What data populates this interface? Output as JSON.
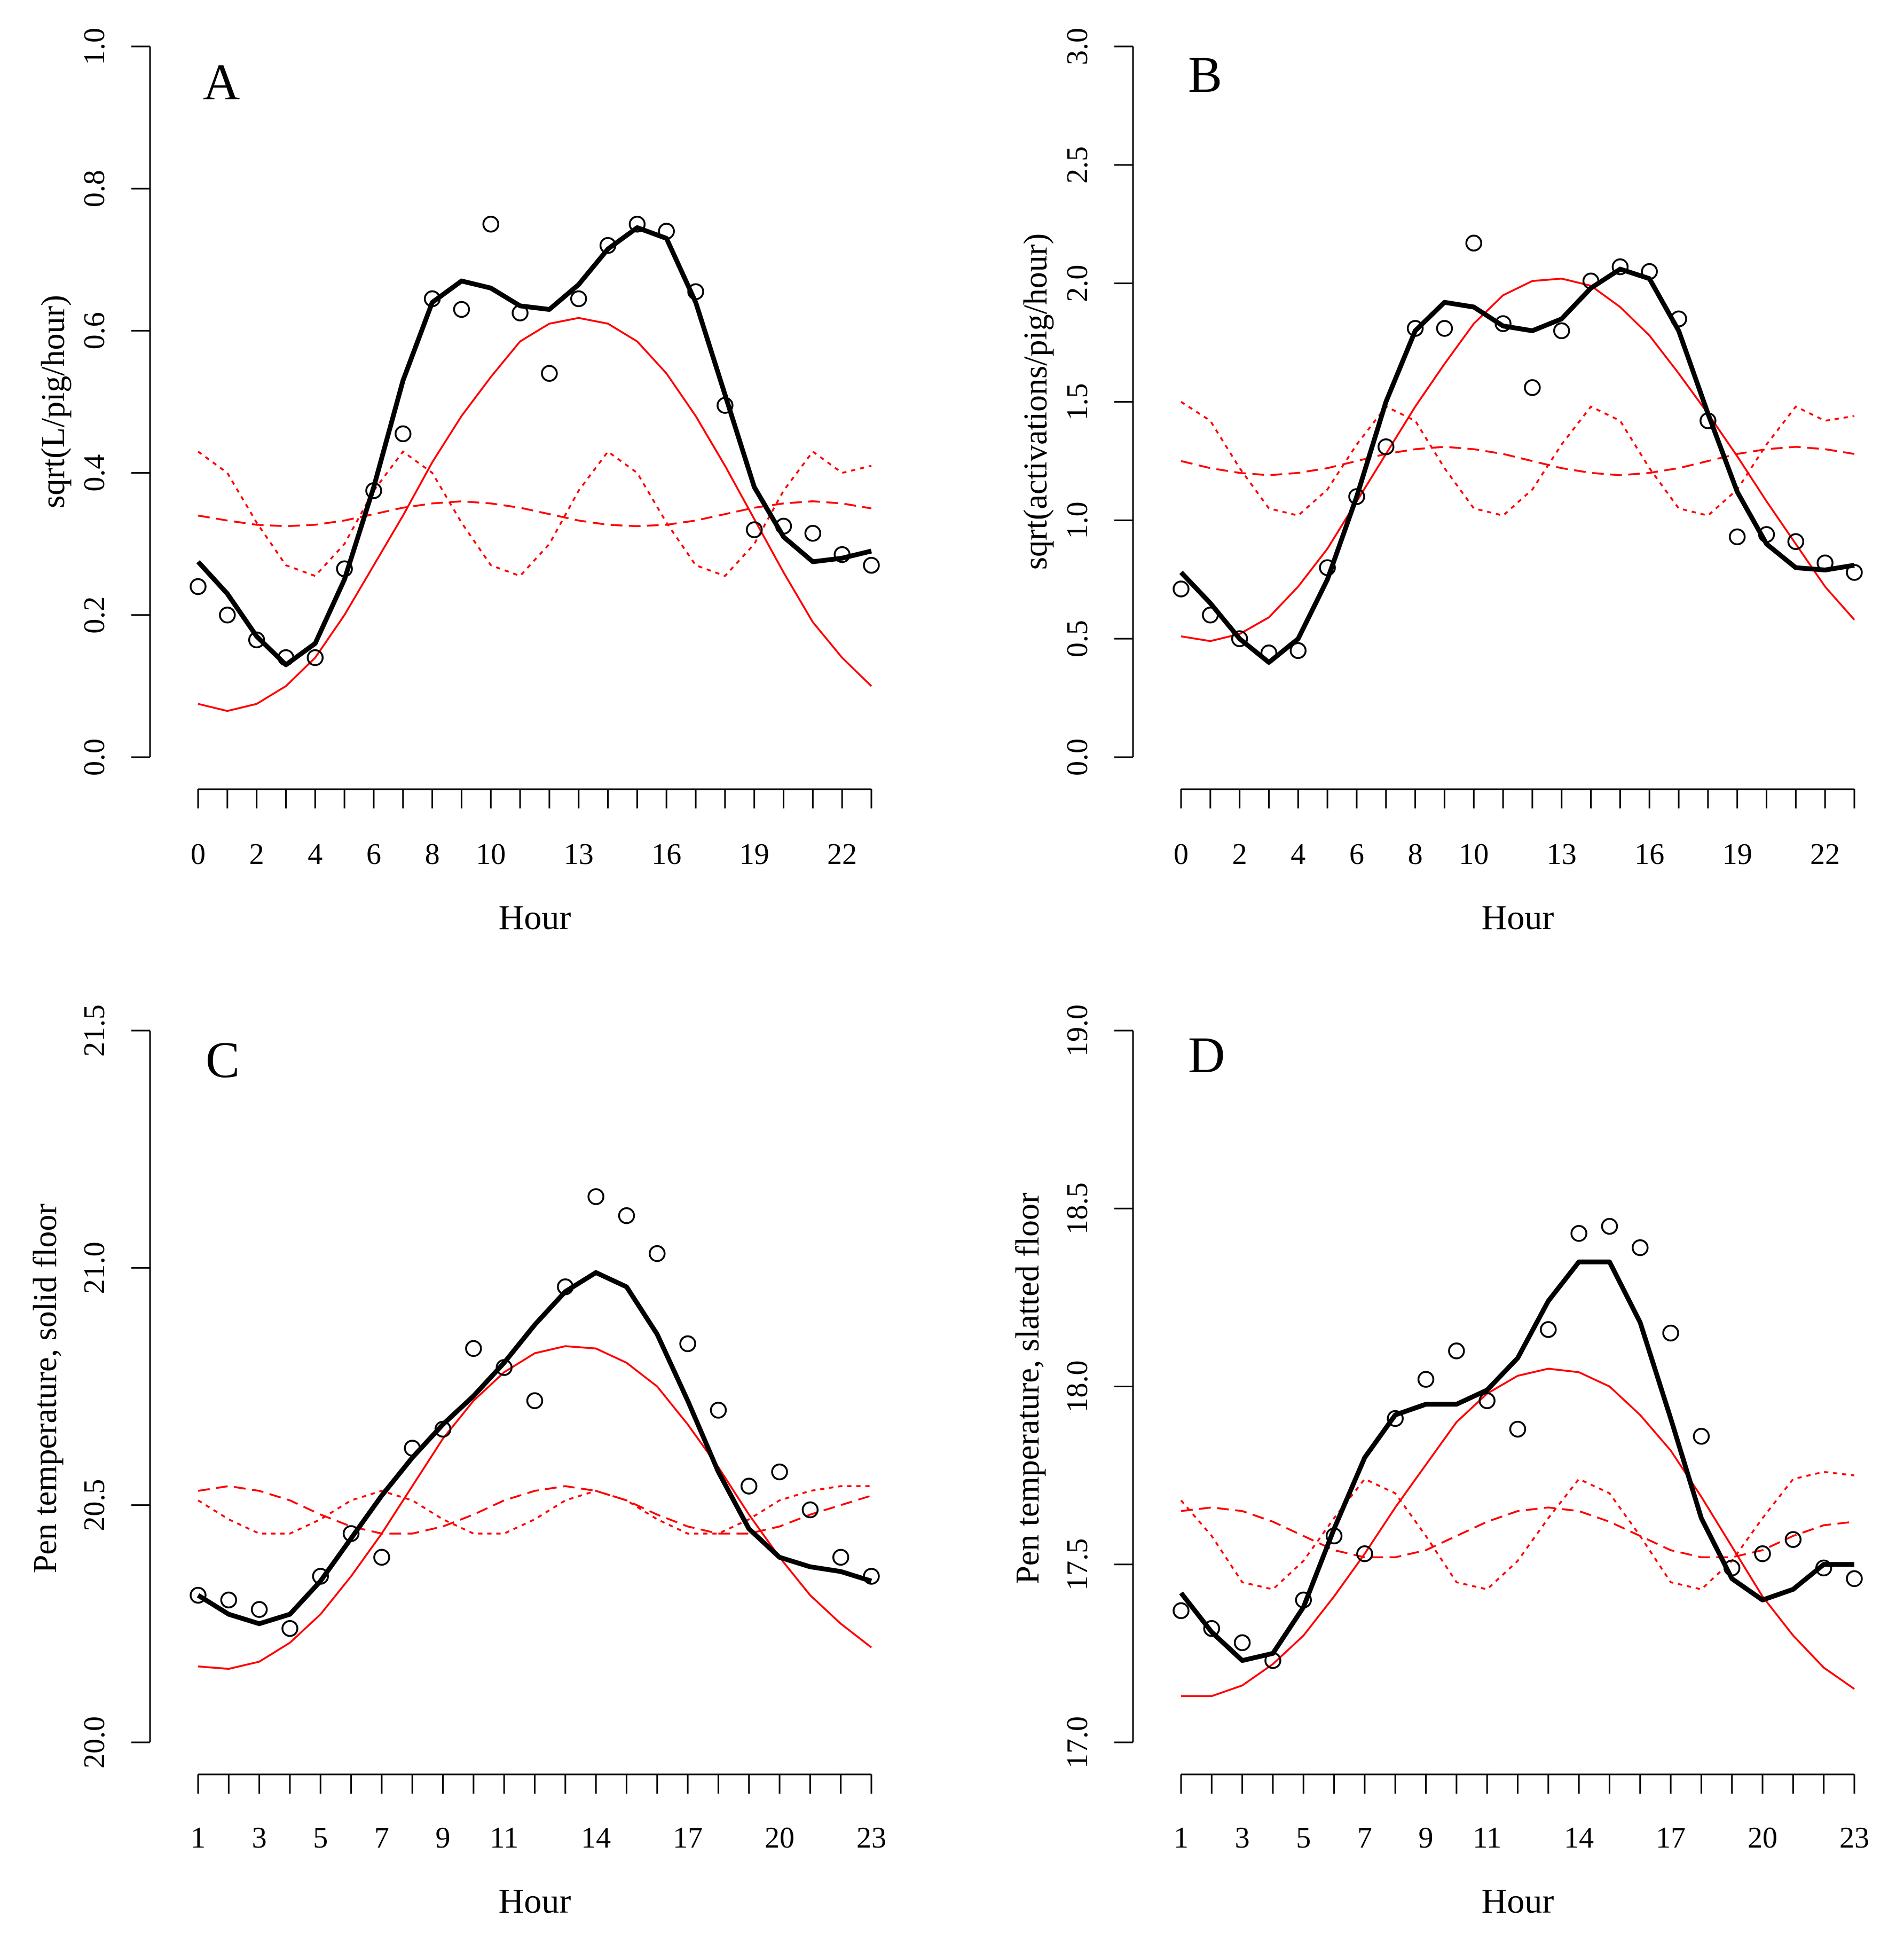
{
  "chart_data": [
    {
      "type": "line",
      "panel_label": "A",
      "xlabel": "Hour",
      "ylabel": "sqrt(L/pig/hour)",
      "xlim": [
        0,
        23
      ],
      "ylim": [
        0,
        1
      ],
      "x_ticks": [
        0,
        1,
        2,
        3,
        4,
        5,
        6,
        7,
        8,
        9,
        10,
        11,
        12,
        13,
        14,
        15,
        16,
        17,
        18,
        19,
        20,
        21,
        22,
        23
      ],
      "x_tick_labels": [
        "0",
        "2",
        "4",
        "6",
        "8",
        "10",
        "13",
        "16",
        "19",
        "22"
      ],
      "x_tick_label_at": [
        0,
        2,
        4,
        6,
        8,
        10,
        13,
        16,
        19,
        22
      ],
      "y_ticks": [
        0,
        0.2,
        0.4,
        0.6,
        0.8,
        1
      ],
      "y_tick_labels": [
        "0.0",
        "0.2",
        "0.4",
        "0.6",
        "0.8",
        "1.0"
      ],
      "x": [
        0,
        1,
        2,
        3,
        4,
        5,
        6,
        7,
        8,
        9,
        10,
        11,
        12,
        13,
        14,
        15,
        16,
        17,
        18,
        19,
        20,
        21,
        22,
        23
      ],
      "observed": [
        0.24,
        0.2,
        0.165,
        0.14,
        0.14,
        0.265,
        0.375,
        0.455,
        0.645,
        0.63,
        0.75,
        0.625,
        0.54,
        0.645,
        0.72,
        0.75,
        0.74,
        0.655,
        0.495,
        0.32,
        0.325,
        0.315,
        0.285,
        0.27
      ],
      "smooth": [
        0.275,
        0.23,
        0.17,
        0.13,
        0.16,
        0.25,
        0.38,
        0.53,
        0.64,
        0.67,
        0.66,
        0.635,
        0.63,
        0.665,
        0.715,
        0.745,
        0.73,
        0.64,
        0.51,
        0.38,
        0.31,
        0.275,
        0.28,
        0.29
      ],
      "harmonic_fit": [
        0.075,
        0.065,
        0.075,
        0.1,
        0.14,
        0.2,
        0.27,
        0.34,
        0.415,
        0.48,
        0.535,
        0.585,
        0.61,
        0.618,
        0.61,
        0.585,
        0.54,
        0.48,
        0.41,
        0.335,
        0.26,
        0.19,
        0.14,
        0.1
      ],
      "harmonic_1": [
        0.34,
        0.333,
        0.327,
        0.325,
        0.327,
        0.333,
        0.342,
        0.351,
        0.357,
        0.36,
        0.357,
        0.351,
        0.342,
        0.333,
        0.327,
        0.325,
        0.327,
        0.333,
        0.342,
        0.351,
        0.357,
        0.36,
        0.357,
        0.35
      ],
      "harmonic_2": [
        0.43,
        0.4,
        0.33,
        0.27,
        0.255,
        0.3,
        0.375,
        0.43,
        0.4,
        0.33,
        0.27,
        0.255,
        0.3,
        0.375,
        0.43,
        0.4,
        0.33,
        0.27,
        0.255,
        0.3,
        0.375,
        0.43,
        0.4,
        0.41
      ],
      "colors": {
        "observed": "#000000",
        "smooth": "#000000",
        "harmonic": "#ff0000"
      }
    },
    {
      "type": "line",
      "panel_label": "B",
      "xlabel": "Hour",
      "ylabel": "sqrt(activations/pig/hour)",
      "xlim": [
        0,
        23
      ],
      "ylim": [
        0,
        3
      ],
      "x_ticks": [
        0,
        1,
        2,
        3,
        4,
        5,
        6,
        7,
        8,
        9,
        10,
        11,
        12,
        13,
        14,
        15,
        16,
        17,
        18,
        19,
        20,
        21,
        22,
        23
      ],
      "x_tick_labels": [
        "0",
        "2",
        "4",
        "6",
        "8",
        "10",
        "13",
        "16",
        "19",
        "22"
      ],
      "x_tick_label_at": [
        0,
        2,
        4,
        6,
        8,
        10,
        13,
        16,
        19,
        22
      ],
      "y_ticks": [
        0,
        0.5,
        1,
        1.5,
        2,
        2.5,
        3
      ],
      "y_tick_labels": [
        "0.0",
        "0.5",
        "1.0",
        "1.5",
        "2.0",
        "2.5",
        "3.0"
      ],
      "x": [
        0,
        1,
        2,
        3,
        4,
        5,
        6,
        7,
        8,
        9,
        10,
        11,
        12,
        13,
        14,
        15,
        16,
        17,
        18,
        19,
        20,
        21,
        22,
        23
      ],
      "observed": [
        0.71,
        0.6,
        0.5,
        0.44,
        0.45,
        0.8,
        1.1,
        1.31,
        1.81,
        1.81,
        2.17,
        1.83,
        1.56,
        1.8,
        2.01,
        2.07,
        2.05,
        1.85,
        1.42,
        0.93,
        0.94,
        0.91,
        0.82,
        0.78
      ],
      "smooth": [
        0.78,
        0.65,
        0.5,
        0.4,
        0.5,
        0.75,
        1.1,
        1.5,
        1.8,
        1.92,
        1.9,
        1.82,
        1.8,
        1.85,
        1.98,
        2.06,
        2.02,
        1.8,
        1.45,
        1.12,
        0.9,
        0.8,
        0.79,
        0.81
      ],
      "harmonic_fit": [
        0.51,
        0.49,
        0.52,
        0.59,
        0.72,
        0.88,
        1.08,
        1.28,
        1.48,
        1.66,
        1.83,
        1.95,
        2.01,
        2.02,
        1.99,
        1.9,
        1.78,
        1.62,
        1.45,
        1.27,
        1.08,
        0.9,
        0.72,
        0.58
      ],
      "harmonic_1": [
        1.25,
        1.22,
        1.2,
        1.19,
        1.2,
        1.22,
        1.25,
        1.28,
        1.3,
        1.31,
        1.3,
        1.28,
        1.25,
        1.22,
        1.2,
        1.19,
        1.2,
        1.22,
        1.25,
        1.28,
        1.3,
        1.31,
        1.3,
        1.28
      ],
      "harmonic_2": [
        1.5,
        1.42,
        1.22,
        1.05,
        1.02,
        1.13,
        1.32,
        1.48,
        1.42,
        1.22,
        1.05,
        1.02,
        1.13,
        1.32,
        1.48,
        1.42,
        1.22,
        1.05,
        1.02,
        1.13,
        1.32,
        1.48,
        1.42,
        1.44
      ],
      "colors": {
        "observed": "#000000",
        "smooth": "#000000",
        "harmonic": "#ff0000"
      }
    },
    {
      "type": "line",
      "panel_label": "C",
      "xlabel": "Hour",
      "ylabel": "Pen temperature, solid floor",
      "xlim": [
        1,
        23
      ],
      "ylim": [
        20,
        21.5
      ],
      "x_ticks": [
        1,
        2,
        3,
        4,
        5,
        6,
        7,
        8,
        9,
        10,
        11,
        12,
        13,
        14,
        15,
        16,
        17,
        18,
        19,
        20,
        21,
        22,
        23
      ],
      "x_tick_labels": [
        "1",
        "3",
        "5",
        "7",
        "9",
        "11",
        "14",
        "17",
        "20",
        "23"
      ],
      "x_tick_label_at": [
        1,
        3,
        5,
        7,
        9,
        11,
        14,
        17,
        20,
        23
      ],
      "y_ticks": [
        20,
        20.5,
        21,
        21.5
      ],
      "y_tick_labels": [
        "20.0",
        "20.5",
        "21.0",
        "21.5"
      ],
      "x": [
        1,
        2,
        3,
        4,
        5,
        6,
        7,
        8,
        9,
        10,
        11,
        12,
        13,
        14,
        15,
        16,
        17,
        18,
        19,
        20,
        21,
        22,
        23
      ],
      "observed": [
        20.31,
        20.3,
        20.28,
        20.24,
        20.35,
        20.44,
        20.39,
        20.62,
        20.66,
        20.83,
        20.79,
        20.72,
        20.96,
        21.15,
        21.11,
        21.03,
        20.84,
        20.7,
        20.54,
        20.57,
        20.49,
        20.39,
        20.35
      ],
      "smooth": [
        20.31,
        20.27,
        20.25,
        20.27,
        20.34,
        20.43,
        20.52,
        20.6,
        20.67,
        20.73,
        20.8,
        20.88,
        20.95,
        20.99,
        20.96,
        20.86,
        20.72,
        20.57,
        20.45,
        20.39,
        20.37,
        20.36,
        20.34
      ],
      "harmonic_fit": [
        20.16,
        20.155,
        20.17,
        20.21,
        20.27,
        20.35,
        20.44,
        20.54,
        20.64,
        20.72,
        20.78,
        20.82,
        20.835,
        20.83,
        20.8,
        20.75,
        20.67,
        20.58,
        20.48,
        20.39,
        20.31,
        20.25,
        20.2
      ],
      "harmonic_1": [
        20.53,
        20.54,
        20.53,
        20.51,
        20.48,
        20.455,
        20.44,
        20.44,
        20.455,
        20.48,
        20.51,
        20.53,
        20.54,
        20.53,
        20.51,
        20.48,
        20.455,
        20.44,
        20.44,
        20.455,
        20.48,
        20.5,
        20.52
      ],
      "harmonic_2": [
        20.51,
        20.47,
        20.44,
        20.44,
        20.47,
        20.51,
        20.53,
        20.51,
        20.47,
        20.44,
        20.44,
        20.47,
        20.51,
        20.53,
        20.51,
        20.47,
        20.44,
        20.44,
        20.47,
        20.51,
        20.53,
        20.54,
        20.54
      ],
      "colors": {
        "observed": "#000000",
        "smooth": "#000000",
        "harmonic": "#ff0000"
      }
    },
    {
      "type": "line",
      "panel_label": "D",
      "xlabel": "Hour",
      "ylabel": "Pen temperature, slatted floor",
      "xlim": [
        1,
        23
      ],
      "ylim": [
        17,
        19
      ],
      "x_ticks": [
        1,
        2,
        3,
        4,
        5,
        6,
        7,
        8,
        9,
        10,
        11,
        12,
        13,
        14,
        15,
        16,
        17,
        18,
        19,
        20,
        21,
        22,
        23
      ],
      "x_tick_labels": [
        "1",
        "3",
        "5",
        "7",
        "9",
        "11",
        "14",
        "17",
        "20",
        "23"
      ],
      "x_tick_label_at": [
        1,
        3,
        5,
        7,
        9,
        11,
        14,
        17,
        20,
        23
      ],
      "y_ticks": [
        17,
        17.5,
        18,
        18.5,
        19
      ],
      "y_tick_labels": [
        "17.0",
        "17.5",
        "18.0",
        "18.5",
        "19.0"
      ],
      "x": [
        1,
        2,
        3,
        4,
        5,
        6,
        7,
        8,
        9,
        10,
        11,
        12,
        13,
        14,
        15,
        16,
        17,
        18,
        19,
        20,
        21,
        22,
        23
      ],
      "observed": [
        17.37,
        17.32,
        17.28,
        17.23,
        17.4,
        17.58,
        17.53,
        17.91,
        18.02,
        18.1,
        17.96,
        17.88,
        18.16,
        18.43,
        18.45,
        18.39,
        18.15,
        17.86,
        17.49,
        17.53,
        17.57,
        17.49,
        17.46
      ],
      "smooth": [
        17.42,
        17.31,
        17.23,
        17.25,
        17.38,
        17.6,
        17.8,
        17.92,
        17.95,
        17.95,
        17.99,
        18.08,
        18.24,
        18.35,
        18.35,
        18.18,
        17.91,
        17.63,
        17.46,
        17.4,
        17.43,
        17.5,
        17.5
      ],
      "harmonic_fit": [
        17.13,
        17.13,
        17.16,
        17.22,
        17.3,
        17.41,
        17.53,
        17.66,
        17.78,
        17.9,
        17.98,
        18.03,
        18.05,
        18.04,
        18.0,
        17.92,
        17.82,
        17.69,
        17.55,
        17.41,
        17.3,
        17.21,
        17.15
      ],
      "harmonic_1": [
        17.65,
        17.66,
        17.65,
        17.62,
        17.58,
        17.54,
        17.52,
        17.52,
        17.54,
        17.58,
        17.62,
        17.65,
        17.66,
        17.65,
        17.62,
        17.58,
        17.54,
        17.52,
        17.52,
        17.54,
        17.58,
        17.61,
        17.62
      ],
      "harmonic_2": [
        17.68,
        17.58,
        17.45,
        17.43,
        17.51,
        17.63,
        17.74,
        17.7,
        17.58,
        17.45,
        17.43,
        17.51,
        17.63,
        17.74,
        17.7,
        17.58,
        17.45,
        17.43,
        17.51,
        17.63,
        17.74,
        17.76,
        17.75
      ],
      "colors": {
        "observed": "#000000",
        "smooth": "#000000",
        "harmonic": "#ff0000"
      }
    }
  ]
}
